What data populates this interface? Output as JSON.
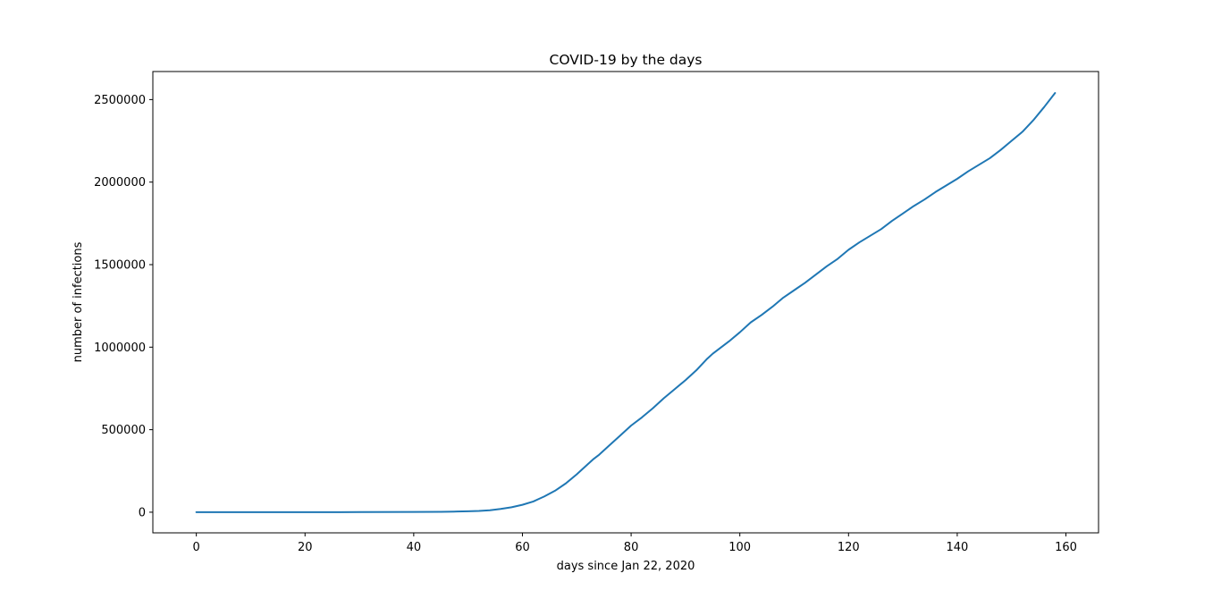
{
  "chart_data": {
    "type": "line",
    "title": "COVID-19 by the days",
    "xlabel": "days since Jan 22, 2020",
    "ylabel": "number of infections",
    "xlim": [
      -8,
      166
    ],
    "ylim": [
      -125000,
      2670000
    ],
    "xticks": [
      0,
      20,
      40,
      60,
      80,
      100,
      120,
      140,
      160
    ],
    "yticks": [
      0,
      500000,
      1000000,
      1500000,
      2000000,
      2500000
    ],
    "grid": false,
    "legend": "none",
    "series": [
      {
        "color": "#1f77b4",
        "x": [
          0,
          10,
          20,
          30,
          40,
          45,
          48,
          50,
          52,
          54,
          56,
          58,
          60,
          62,
          63,
          64,
          66,
          68,
          70,
          72,
          73,
          74,
          76,
          78,
          80,
          82,
          84,
          86,
          88,
          90,
          92,
          94,
          95,
          96,
          98,
          100,
          102,
          104,
          106,
          108,
          110,
          112,
          114,
          116,
          118,
          120,
          122,
          124,
          126,
          128,
          130,
          132,
          134,
          136,
          138,
          140,
          142,
          144,
          146,
          148,
          150,
          152,
          154,
          156,
          158
        ],
        "y": [
          0,
          0,
          300,
          700,
          1500,
          2500,
          4000,
          5500,
          8000,
          12000,
          20000,
          30000,
          45000,
          65000,
          80000,
          95000,
          130000,
          175000,
          230000,
          290000,
          320000,
          345000,
          405000,
          465000,
          525000,
          575000,
          630000,
          690000,
          745000,
          800000,
          860000,
          930000,
          960000,
          985000,
          1035000,
          1090000,
          1150000,
          1195000,
          1245000,
          1300000,
          1345000,
          1390000,
          1440000,
          1490000,
          1535000,
          1590000,
          1635000,
          1675000,
          1715000,
          1765000,
          1810000,
          1855000,
          1895000,
          1940000,
          1980000,
          2020000,
          2065000,
          2105000,
          2145000,
          2195000,
          2250000,
          2305000,
          2375000,
          2455000,
          2540000
        ]
      }
    ]
  }
}
